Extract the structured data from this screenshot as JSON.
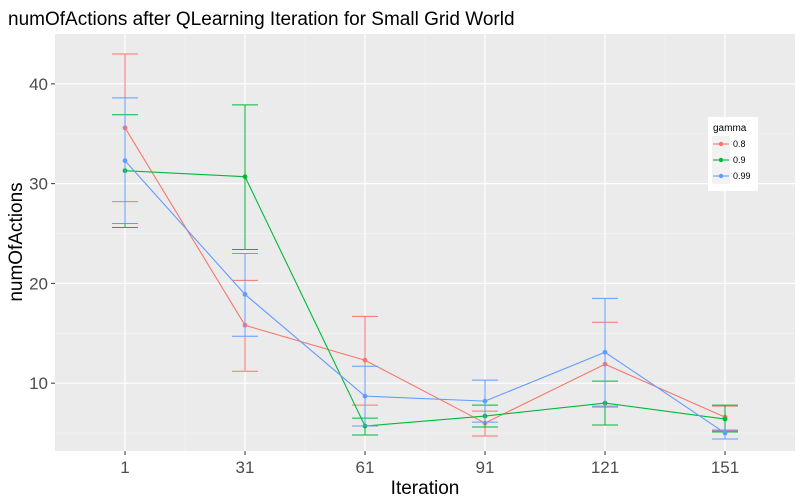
{
  "chart_data": {
    "type": "line",
    "title": "numOfActions after QLearning Iteration for Small Grid World",
    "xlabel": "Iteration",
    "ylabel": "numOfActions",
    "x": [
      1,
      31,
      61,
      91,
      121,
      151
    ],
    "x_ticks": [
      "1",
      "31",
      "61",
      "91",
      "121",
      "151"
    ],
    "y_ticks": [
      "10",
      "20",
      "30",
      "40"
    ],
    "y_tick_values": [
      10,
      20,
      30,
      40
    ],
    "ylim": [
      3.2,
      45.0
    ],
    "grid": true,
    "error_bars": true,
    "legend": {
      "title": "gamma",
      "position": "right"
    },
    "series": [
      {
        "name": "0.8",
        "color": "#F8766D",
        "values": [
          35.6,
          15.8,
          12.3,
          6.0,
          11.9,
          6.6
        ],
        "err_low": [
          28.2,
          11.2,
          7.8,
          4.7,
          7.6,
          5.2
        ],
        "err_high": [
          43.0,
          20.3,
          16.7,
          7.2,
          16.1,
          7.7
        ]
      },
      {
        "name": "0.9",
        "color": "#00BA38",
        "values": [
          31.3,
          30.7,
          5.7,
          6.7,
          8.0,
          6.4
        ],
        "err_low": [
          25.6,
          23.4,
          4.8,
          5.6,
          5.8,
          5.1
        ],
        "err_high": [
          36.9,
          37.9,
          6.5,
          7.8,
          10.2,
          7.8
        ]
      },
      {
        "name": "0.99",
        "color": "#619CFF",
        "values": [
          32.3,
          18.9,
          8.7,
          8.2,
          13.1,
          5.0
        ],
        "err_low": [
          26.0,
          14.7,
          5.7,
          6.1,
          7.7,
          4.4
        ],
        "err_high": [
          38.6,
          23.0,
          11.7,
          10.3,
          18.5,
          5.3
        ]
      }
    ]
  }
}
